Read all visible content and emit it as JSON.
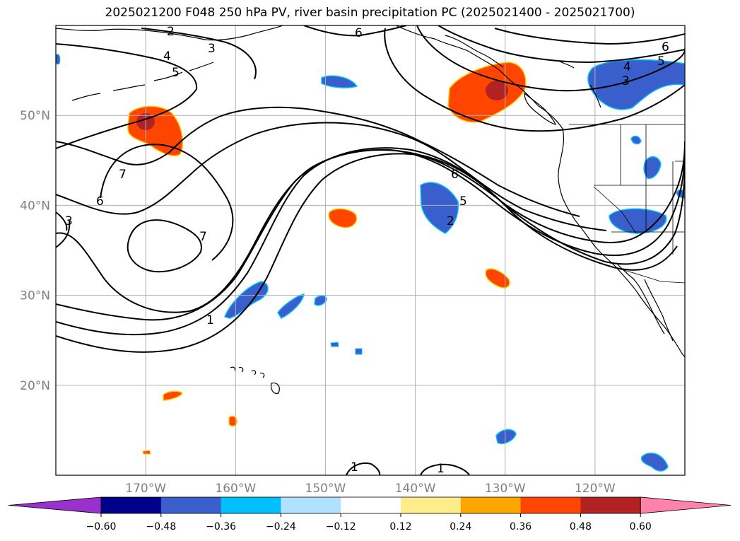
{
  "title": "2025021200 F048 250 hPa PV, river basin precipitation PC (2025021400 - 2025021700)",
  "map": {
    "lon_range": [
      -180,
      -110
    ],
    "lat_range": [
      10,
      60
    ],
    "lat_labels": [
      {
        "lat": 50,
        "text": "50°N"
      },
      {
        "lat": 40,
        "text": "40°N"
      },
      {
        "lat": 30,
        "text": "30°N"
      },
      {
        "lat": 20,
        "text": "20°N"
      }
    ],
    "lon_labels": [
      {
        "lon": -170,
        "text": "170°W"
      },
      {
        "lon": -160,
        "text": "160°W"
      },
      {
        "lon": -150,
        "text": "150°W"
      },
      {
        "lon": -140,
        "text": "140°W"
      },
      {
        "lon": -130,
        "text": "130°W"
      },
      {
        "lon": -120,
        "text": "120°W"
      }
    ],
    "contour_labels": [
      "1",
      "2",
      "3",
      "4",
      "5",
      "6",
      "7"
    ]
  },
  "colorbar": {
    "colors": [
      "#9932cc",
      "#00008b",
      "#3a5fcd",
      "#00bfff",
      "#b0e2ff",
      "#ffffff",
      "#ffec8b",
      "#ffa500",
      "#ff4500",
      "#b22222",
      "#ff82ab"
    ],
    "tick_labels": [
      "−0.60",
      "−0.48",
      "−0.36",
      "−0.24",
      "−0.12",
      "0.12",
      "0.24",
      "0.36",
      "0.48",
      "0.60"
    ]
  }
}
